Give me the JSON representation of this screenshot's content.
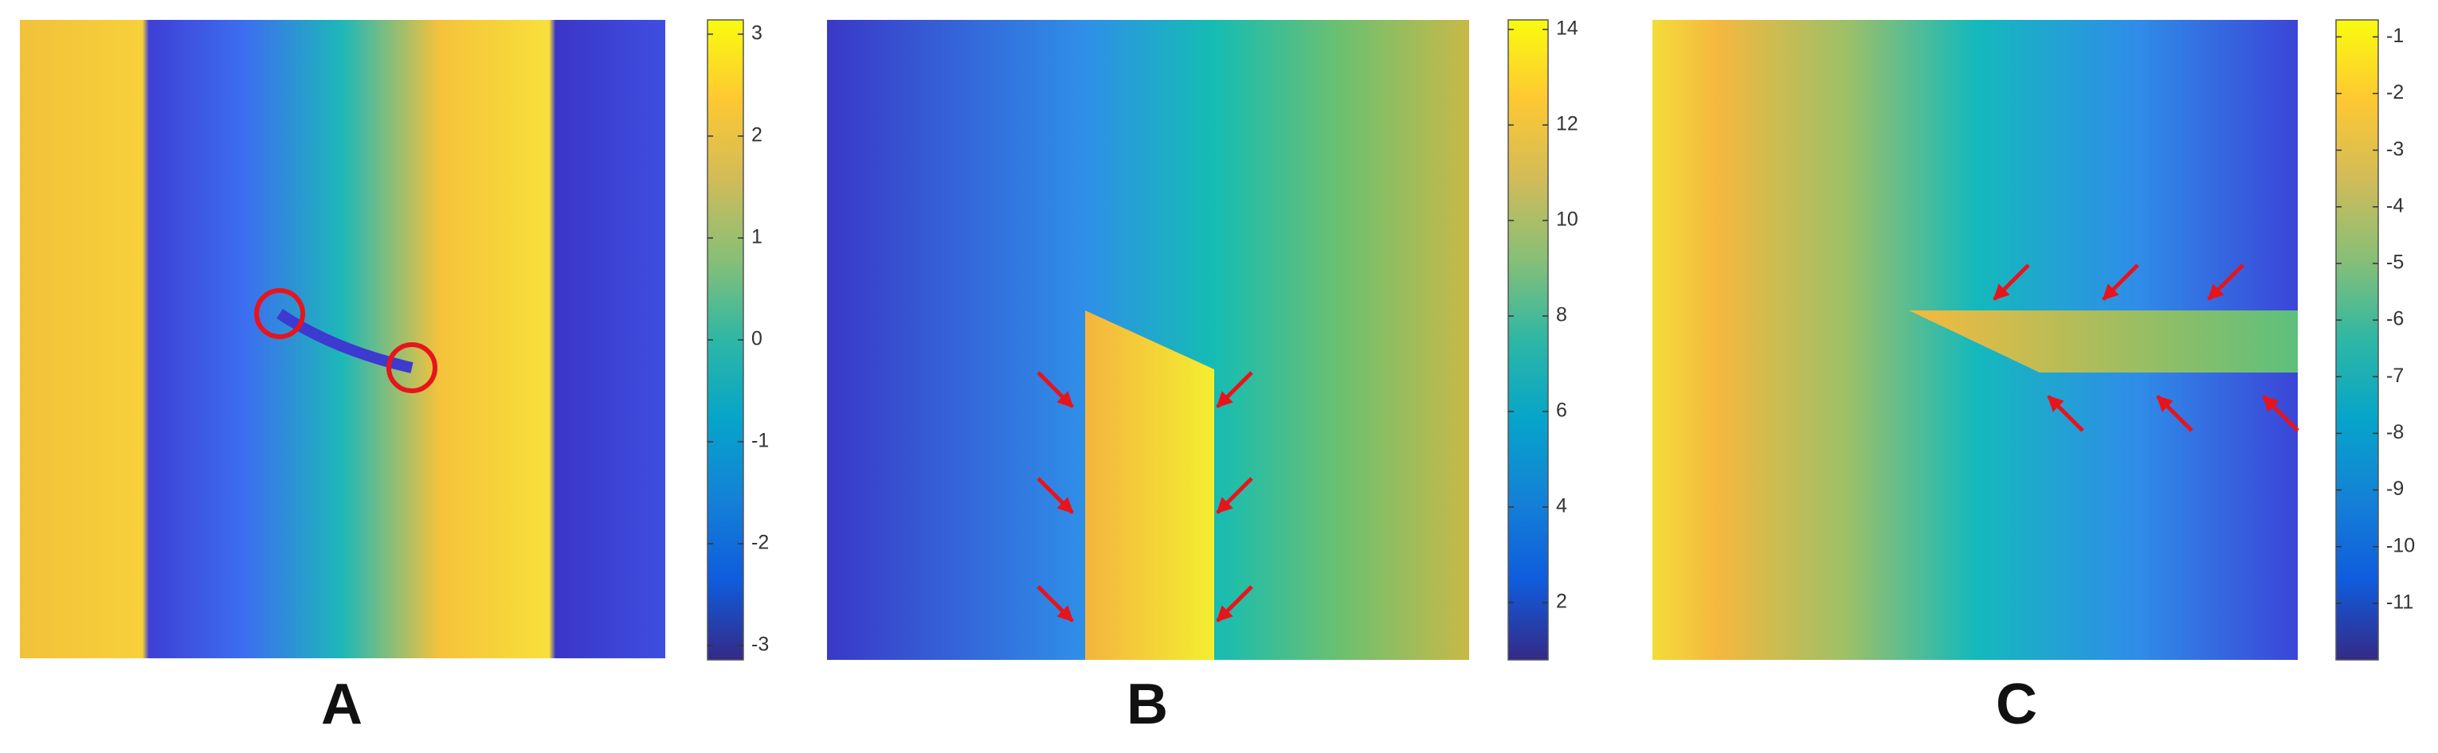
{
  "chart_data": [
    {
      "type": "heatmap",
      "title": "A",
      "ylim": [
        -3.14,
        3.14
      ],
      "yticks": [
        -3,
        -2,
        -1,
        0,
        1,
        2,
        3
      ]
    },
    {
      "type": "heatmap",
      "title": "B",
      "ylim": [
        0.8,
        14.2
      ],
      "yticks": [
        2,
        4,
        6,
        8,
        10,
        12,
        14
      ]
    },
    {
      "type": "heatmap",
      "title": "C",
      "ylim": [
        -12,
        -0.7
      ],
      "yticks": [
        -11,
        -10,
        -9,
        -8,
        -7,
        -6,
        -5,
        -4,
        -3,
        -2,
        -1
      ]
    }
  ]
}
